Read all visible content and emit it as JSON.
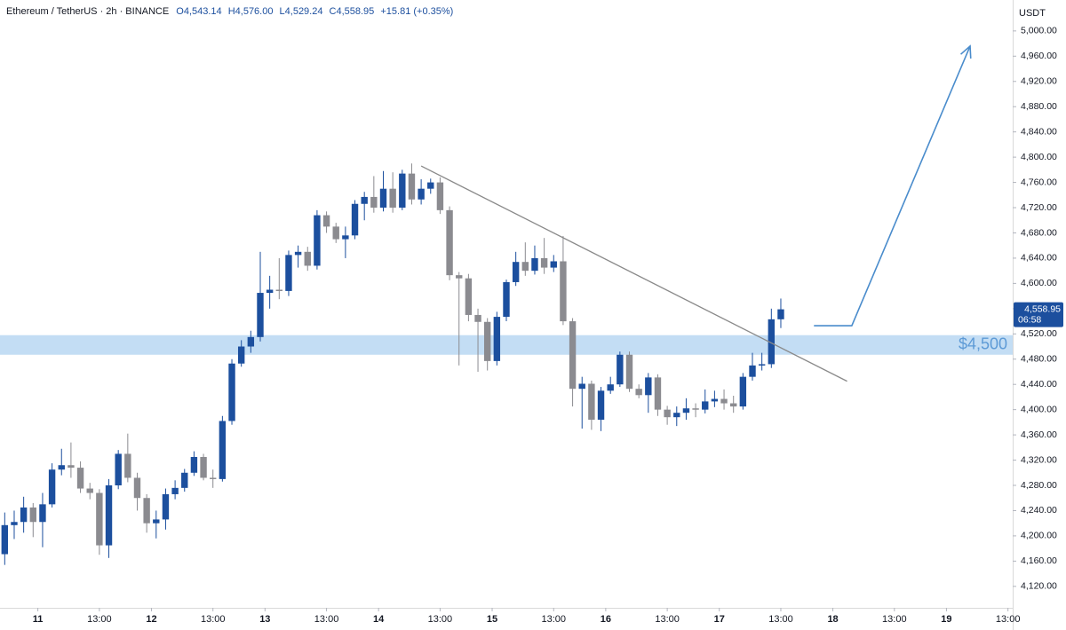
{
  "chart_data": {
    "type": "candlestick",
    "header": {
      "symbol": "Ethereum / TetherUS · 2h · BINANCE",
      "open": "O4,543.14",
      "high": "H4,576.00",
      "low": "L4,529.24",
      "close": "C4,558.95",
      "change": "+15.81 (+0.35%)"
    },
    "y_axis_label": "USDT",
    "x": [
      -7,
      -5,
      -3,
      -1,
      1,
      3,
      5,
      7,
      9,
      11,
      13,
      15,
      17,
      19,
      21,
      23,
      25,
      27,
      29,
      31,
      33,
      35,
      37,
      39,
      41,
      43,
      45,
      47,
      49,
      51,
      53,
      55,
      57,
      59,
      61,
      63,
      65,
      67,
      69,
      71,
      73,
      75,
      77,
      79,
      81,
      83,
      85,
      87,
      89,
      91,
      93,
      95,
      97,
      99,
      101,
      103,
      105,
      107,
      109,
      111,
      113,
      115,
      117,
      119,
      121,
      123,
      125,
      127,
      129,
      131,
      133,
      135,
      137,
      139,
      141,
      143,
      145,
      147,
      149,
      151,
      153,
      155,
      157
    ],
    "open": [
      4171,
      4217,
      4222,
      4245,
      4222,
      4250,
      4305,
      4312,
      4308,
      4275,
      4268,
      4185,
      4280,
      4330,
      4292,
      4260,
      4220,
      4226,
      4266,
      4276,
      4300,
      4325,
      4292,
      4290,
      4382,
      4473,
      4500,
      4515,
      4585,
      4590,
      4588,
      4645,
      4650,
      4628,
      4708,
      4690,
      4670,
      4676,
      4726,
      4737,
      4720,
      4750,
      4720,
      4774,
      4733,
      4750,
      4760,
      4716,
      4613,
      4608,
      4550,
      4539,
      4477,
      4547,
      4602,
      4634,
      4620,
      4640,
      4625,
      4635,
      4540,
      4433,
      4441,
      4384,
      4430,
      4440,
      4487,
      4433,
      4423,
      4451,
      4400,
      4388,
      4395,
      4402,
      4400,
      4413,
      4417,
      4410,
      4405,
      4452,
      4470,
      4472,
      4543.14
    ],
    "high": [
      4237,
      4240,
      4262,
      4252,
      4268,
      4315,
      4338,
      4348,
      4318,
      4284,
      4274,
      4290,
      4336,
      4362,
      4300,
      4266,
      4240,
      4275,
      4288,
      4306,
      4334,
      4330,
      4305,
      4390,
      4480,
      4510,
      4525,
      4650,
      4612,
      4640,
      4652,
      4660,
      4658,
      4716,
      4714,
      4696,
      4690,
      4732,
      4745,
      4770,
      4778,
      4776,
      4780,
      4790,
      4765,
      4766,
      4768,
      4722,
      4618,
      4615,
      4560,
      4545,
      4555,
      4606,
      4650,
      4665,
      4660,
      4672,
      4645,
      4675,
      4545,
      4452,
      4446,
      4436,
      4452,
      4492,
      4492,
      4440,
      4458,
      4456,
      4406,
      4405,
      4418,
      4410,
      4432,
      4430,
      4432,
      4422,
      4458,
      4490,
      4490,
      4560,
      4576
    ],
    "low": [
      4154,
      4195,
      4205,
      4198,
      4182,
      4245,
      4296,
      4292,
      4268,
      4258,
      4170,
      4165,
      4274,
      4285,
      4240,
      4205,
      4196,
      4210,
      4258,
      4270,
      4295,
      4288,
      4276,
      4286,
      4376,
      4468,
      4490,
      4508,
      4560,
      4575,
      4580,
      4625,
      4620,
      4622,
      4680,
      4664,
      4640,
      4670,
      4700,
      4712,
      4714,
      4712,
      4716,
      4725,
      4725,
      4742,
      4710,
      4605,
      4470,
      4540,
      4460,
      4462,
      4470,
      4540,
      4596,
      4612,
      4614,
      4615,
      4618,
      4534,
      4405,
      4370,
      4368,
      4366,
      4425,
      4436,
      4428,
      4418,
      4395,
      4390,
      4376,
      4374,
      4384,
      4388,
      4394,
      4404,
      4400,
      4395,
      4400,
      4446,
      4462,
      4466,
      4529.24
    ],
    "close": [
      4217,
      4222,
      4245,
      4222,
      4250,
      4305,
      4312,
      4308,
      4275,
      4268,
      4185,
      4280,
      4330,
      4292,
      4260,
      4220,
      4226,
      4266,
      4276,
      4300,
      4325,
      4292,
      4290,
      4382,
      4473,
      4500,
      4515,
      4585,
      4590,
      4588,
      4645,
      4650,
      4628,
      4708,
      4690,
      4670,
      4676,
      4726,
      4737,
      4720,
      4750,
      4720,
      4774,
      4733,
      4750,
      4760,
      4716,
      4613,
      4608,
      4550,
      4539,
      4477,
      4547,
      4602,
      4634,
      4620,
      4640,
      4625,
      4635,
      4540,
      4433,
      4441,
      4384,
      4430,
      4440,
      4487,
      4433,
      4423,
      4451,
      4400,
      4388,
      4395,
      4402,
      4400,
      4413,
      4417,
      4410,
      4405,
      4452,
      4470,
      4472,
      4543.14,
      4558.95
    ],
    "up_color": "#1c4f9e",
    "down_color": "#8b8b90",
    "xlim": [
      -8,
      206
    ],
    "ylim": [
      4086,
      5049
    ],
    "xticks": [
      {
        "value": 0,
        "label": "11"
      },
      {
        "value": 13,
        "label": "13:00"
      },
      {
        "value": 24,
        "label": "12"
      },
      {
        "value": 37,
        "label": "13:00"
      },
      {
        "value": 48,
        "label": "13"
      },
      {
        "value": 61,
        "label": "13:00"
      },
      {
        "value": 72,
        "label": "14"
      },
      {
        "value": 85,
        "label": "13:00"
      },
      {
        "value": 96,
        "label": "15"
      },
      {
        "value": 109,
        "label": "13:00"
      },
      {
        "value": 120,
        "label": "16"
      },
      {
        "value": 133,
        "label": "13:00"
      },
      {
        "value": 144,
        "label": "17"
      },
      {
        "value": 157,
        "label": "13:00"
      },
      {
        "value": 168,
        "label": "18"
      },
      {
        "value": 181,
        "label": "13:00"
      },
      {
        "value": 192,
        "label": "19"
      },
      {
        "value": 205,
        "label": "13:00"
      }
    ],
    "yticks": [
      {
        "value": 4120,
        "label": "4,120.00"
      },
      {
        "value": 4160,
        "label": "4,160.00"
      },
      {
        "value": 4200,
        "label": "4,200.00"
      },
      {
        "value": 4240,
        "label": "4,240.00"
      },
      {
        "value": 4280,
        "label": "4,280.00"
      },
      {
        "value": 4320,
        "label": "4,320.00"
      },
      {
        "value": 4360,
        "label": "4,360.00"
      },
      {
        "value": 4400,
        "label": "4,400.00"
      },
      {
        "value": 4440,
        "label": "4,440.00"
      },
      {
        "value": 4480,
        "label": "4,480.00"
      },
      {
        "value": 4520,
        "label": "4,520.00"
      },
      {
        "value": 4560,
        "label": "4,560.00"
      },
      {
        "value": 4600,
        "label": "4,600.00"
      },
      {
        "value": 4640,
        "label": "4,640.00"
      },
      {
        "value": 4680,
        "label": "4,680.00"
      },
      {
        "value": 4720,
        "label": "4,720.00"
      },
      {
        "value": 4760,
        "label": "4,760.00"
      },
      {
        "value": 4800,
        "label": "4,800.00"
      },
      {
        "value": 4840,
        "label": "4,840.00"
      },
      {
        "value": 4880,
        "label": "4,880.00"
      },
      {
        "value": 4920,
        "label": "4,920.00"
      },
      {
        "value": 4960,
        "label": "4,960.00"
      },
      {
        "value": 5000,
        "label": "5,000.00"
      }
    ],
    "grid": false,
    "last_price": {
      "value": 4558.95,
      "label": "4,558.95",
      "countdown": "06:58",
      "color": "#1c4f9e"
    },
    "zone": {
      "low": 4487,
      "high": 4518,
      "label": "$4,500",
      "color": "#bdd9f3",
      "label_color": "#5d9ad6"
    },
    "trendline": {
      "x": [
        81,
        171
      ],
      "y": [
        4786,
        4445
      ],
      "color": "#8a8a8a"
    },
    "arrow": {
      "x": [
        164,
        172,
        197
      ],
      "y": [
        4533,
        4533,
        4976
      ],
      "color": "#4a8ccc"
    }
  }
}
